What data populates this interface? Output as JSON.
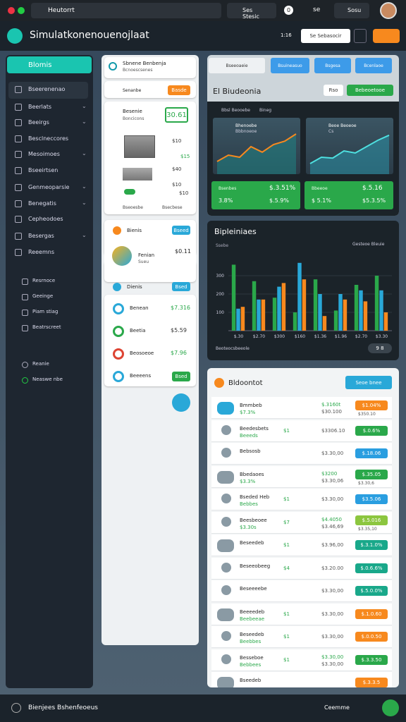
{
  "top_bar": {
    "tab": "Heutorrt",
    "search": "Ses Stesic",
    "badge": "0",
    "menu": "se",
    "user": "Sosu"
  },
  "header": {
    "title": "Simulatkonenouenojlaat",
    "time": "1:16",
    "search_button": "Se Sebasocir"
  },
  "sidebar": {
    "title": "Blomis",
    "items": [
      "Bseerenenao",
      "Beerlats",
      "Beeirgs",
      "Besclneccores",
      "Mesoimoes",
      "Bseeirtsen",
      "Genmeoparsie",
      "Benegatis",
      "Cepheodoes",
      "Besergas",
      "Reeemns"
    ],
    "section2": [
      "Resrnoce",
      "Geeinge",
      "Piam stiag",
      "Beatrscreet"
    ],
    "section3": [
      "Reanie",
      "Neaswe nbe"
    ]
  },
  "column2": {
    "card_title": "Sbnene Benbenja",
    "card_sub": "Bcnoescsenes",
    "row_label": "Senanbe",
    "row_button": "Basde",
    "product_title": "Besenie",
    "product_sub": "Boncicons",
    "product_price": "30.61",
    "price_tags": [
      "$10",
      "$15",
      "$40",
      "$10",
      "$10"
    ],
    "captions": [
      "Bseoesbe",
      "Bsecbese"
    ],
    "section1": "Bienis",
    "section1_button": "Bseed",
    "person_name": "Fenian",
    "person_sub": "Sueu",
    "person_price": "$0.11",
    "section2": "Dienis",
    "section2_button": "Bsed",
    "list": [
      {
        "name": "Benean",
        "price": "$7.316"
      },
      {
        "name": "Beetia",
        "price": "$5.59"
      },
      {
        "name": "Beosoeoe",
        "price": "$7.96"
      },
      {
        "name": "Beeeens",
        "button": "Bsed"
      }
    ]
  },
  "overview": {
    "tabs": [
      "Bseeoaeie",
      "Bsuineasuo",
      "Bsgesa",
      "Bcenlaoe"
    ],
    "title": "El Biudeonia",
    "small_button": "Rso",
    "green_button": "Bebeoetooe",
    "labels": [
      "Bbsl Beooebe",
      "Bineg"
    ],
    "mini_charts": [
      {
        "title": "Bhenoebe",
        "sub": "Bbbnoeoe",
        "ylim": [
          0,
          100
        ],
        "values": [
          20,
          35,
          30,
          55,
          42,
          60,
          68,
          85
        ]
      },
      {
        "title": "Beoe Beoeoe",
        "sub": "Cs",
        "ylim": [
          0,
          100
        ],
        "values": [
          15,
          30,
          28,
          45,
          40,
          55,
          70,
          82
        ]
      }
    ],
    "tiles": [
      {
        "label": "Bsenbes",
        "value": "$.3.51%",
        "label2": "3.8%",
        "value2": "$.5.9%"
      },
      {
        "label": "Bbeeoe",
        "value": "$.5.16",
        "label2": "$ 5.1%",
        "value2": "$5.3.5%"
      }
    ]
  },
  "bar_chart": {
    "type": "bar",
    "title": "Bipleiniaes",
    "left_note": "Ssebe",
    "legend": "Gesteoe Bleuie",
    "footer": "Beoteocsbeeole",
    "page": "9 8",
    "categories": [
      "$.30",
      "$2.70",
      "$300",
      "$160",
      "$1.36",
      "$1.96",
      "$2.70",
      "$3.30"
    ],
    "ylim": [
      0,
      400
    ],
    "yticks": [
      100,
      200,
      300
    ],
    "series": [
      {
        "color": "#2aa84a",
        "values": [
          360,
          270,
          180,
          100,
          280,
          110,
          250,
          300
        ]
      },
      {
        "color": "#29a8d8",
        "values": [
          120,
          170,
          240,
          370,
          200,
          200,
          220,
          220
        ]
      },
      {
        "color": "#f7891e",
        "values": [
          130,
          170,
          260,
          280,
          80,
          170,
          160,
          100
        ]
      }
    ]
  },
  "table": {
    "title": "Bldoontot",
    "button": "Seoe bnee",
    "rows": [
      {
        "name": "Bmmbeb",
        "sub": "$7.3%",
        "price": "$.3160t",
        "price_sub": "$30.100",
        "status": "$1.04%",
        "status_sub": "$350.10",
        "color": "#f7891e"
      },
      {
        "name": "Beedesbets",
        "sub": "Beeeds",
        "qty": "$1",
        "price": "$3306.10",
        "status": "$.0.6%",
        "color": "#2aa84a"
      },
      {
        "name": "Bebsosb",
        "price": "$3.30,00",
        "status": "$.18.06",
        "color": "#2a9ee0"
      },
      {
        "name": "Bbedaoes",
        "sub": "$3.3%",
        "price": "$3200",
        "price_sub": "$3.30,06",
        "status": "$.35.05",
        "status_sub": "$3.30,6",
        "color": "#2aa84a"
      },
      {
        "name": "Bseded Heb",
        "sub": "Bebbes",
        "qty": "$1",
        "price": "$3.30,00",
        "status": "$3.5.06",
        "color": "#2a9ee0"
      },
      {
        "name": "Beesbeoee",
        "sub": "$3.30s",
        "qty": "$7",
        "price": "$4.4050",
        "price_sub": "$3.46,69",
        "status": "$.5.016",
        "status_sub": "$3.35,10",
        "color": "#8cc63f"
      },
      {
        "name": "Beseedeb",
        "qty": "$1",
        "price": "$3.96,00",
        "status": "$.3.1.0%",
        "color": "#19a88a"
      },
      {
        "name": "Beseeobeeg",
        "qty": "$4",
        "price": "$3.20.00",
        "status": "$.0.6.6%",
        "color": "#19a88a"
      },
      {
        "name": "Beseeeebe",
        "price": "$3.30,00",
        "status": "$.5.0.0%",
        "color": "#19a88a"
      },
      {
        "name": "Beeeedeb",
        "sub": "Beebeeae",
        "qty": "$1",
        "price": "$3.30,00",
        "status": "$.1.0.60",
        "color": "#f7891e"
      },
      {
        "name": "Beseedeb",
        "sub": "Beebbes",
        "qty": "$1",
        "price": "$3.30,00",
        "status": "$.0.0.50",
        "color": "#f7891e"
      },
      {
        "name": "Besseboe",
        "sub": "Bebbees",
        "qty": "$1",
        "price": "$3.30,00",
        "price_sub": "$3.30,00",
        "status": "$.3.3.50",
        "color": "#2aa84a"
      },
      {
        "name": "Bseedeb",
        "status": "$.3.3.5",
        "color": "#f7891e"
      }
    ]
  },
  "footer": {
    "left": "Bienjees Bshenfeoeus",
    "right": "Ceemme"
  }
}
